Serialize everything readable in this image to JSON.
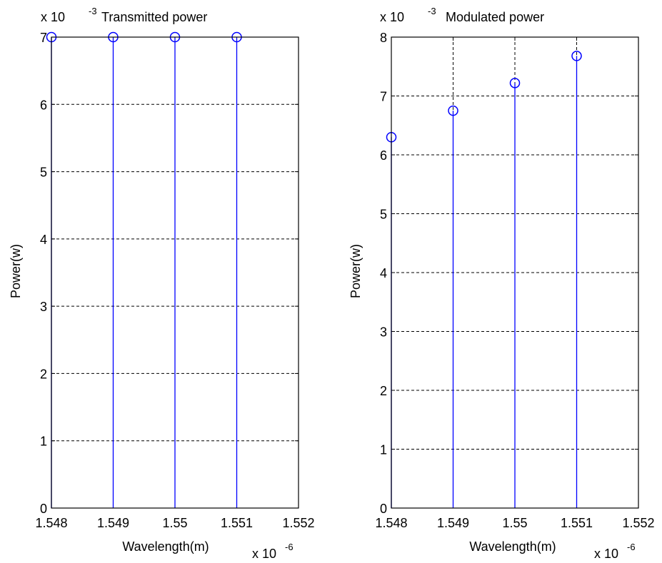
{
  "chart_data": [
    {
      "type": "stem",
      "title": "Transmitted power",
      "xlabel": "Wavelength(m)",
      "ylabel": "Power(w)",
      "x_multiplier": "x 10",
      "x_exponent": "-6",
      "y_multiplier": "x 10",
      "y_exponent": "-3",
      "xlim": [
        1.548,
        1.552
      ],
      "ylim": [
        0,
        7
      ],
      "xticks": [
        1.548,
        1.549,
        1.55,
        1.551,
        1.552
      ],
      "xtick_labels": [
        "1.548",
        "1.549",
        "1.55",
        "1.551",
        "1.552"
      ],
      "yticks": [
        0,
        1,
        2,
        3,
        4,
        5,
        6,
        7
      ],
      "ytick_labels": [
        "0",
        "1",
        "2",
        "3",
        "4",
        "5",
        "6",
        "7"
      ],
      "grid": true,
      "marker": "circle",
      "color": "#0000ff",
      "x": [
        1.548,
        1.549,
        1.55,
        1.551
      ],
      "y": [
        7,
        7,
        7,
        7
      ]
    },
    {
      "type": "stem",
      "title": "Modulated power",
      "xlabel": "Wavelength(m)",
      "ylabel": "Power(w)",
      "x_multiplier": "x 10",
      "x_exponent": "-6",
      "y_multiplier": "x 10",
      "y_exponent": "-3",
      "xlim": [
        1.548,
        1.552
      ],
      "ylim": [
        0,
        8
      ],
      "xticks": [
        1.548,
        1.549,
        1.55,
        1.551,
        1.552
      ],
      "xtick_labels": [
        "1.548",
        "1.549",
        "1.55",
        "1.551",
        "1.552"
      ],
      "yticks": [
        0,
        1,
        2,
        3,
        4,
        5,
        6,
        7,
        8
      ],
      "ytick_labels": [
        "0",
        "1",
        "2",
        "3",
        "4",
        "5",
        "6",
        "7",
        "8"
      ],
      "grid": true,
      "marker": "circle",
      "color": "#0000ff",
      "x": [
        1.548,
        1.549,
        1.55,
        1.551
      ],
      "y": [
        6.3,
        6.75,
        7.22,
        7.68
      ]
    }
  ]
}
